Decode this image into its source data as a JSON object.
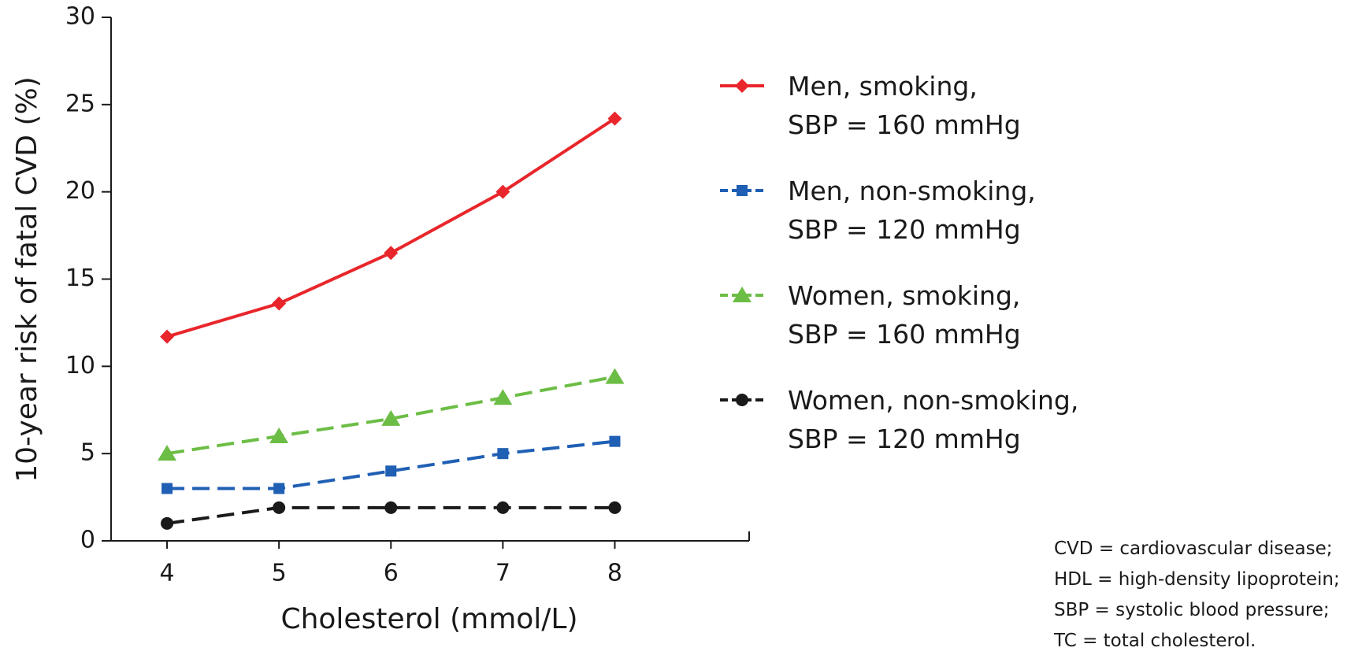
{
  "chart_data": {
    "type": "line",
    "x_label": "Cholesterol (mmol/L)",
    "y_label": "10-year risk of fatal CVD (%)",
    "x": [
      4,
      5,
      6,
      7,
      8
    ],
    "xlim": [
      3.5,
      9.2
    ],
    "xticks": [
      4,
      5,
      6,
      7,
      8
    ],
    "ylim": [
      0,
      30
    ],
    "yticks": [
      0,
      5,
      10,
      15,
      20,
      25,
      30
    ],
    "series": [
      {
        "name": "Men, smoking,\nSBP = 160 mmHg",
        "color": "#e8262b",
        "marker": "diamond",
        "dashed": false,
        "values": [
          11.7,
          13.6,
          16.5,
          20,
          24.2
        ]
      },
      {
        "name": "Men, non-smoking,\nSBP = 120 mmHg",
        "color": "#1f5fb4",
        "marker": "square",
        "dashed": true,
        "values": [
          3.0,
          3.0,
          4.0,
          5.0,
          5.7
        ]
      },
      {
        "name": "Women, smoking,\nSBP = 160 mmHg",
        "color": "#6cbd45",
        "marker": "triangle",
        "dashed": true,
        "values": [
          5.0,
          6.0,
          7.0,
          8.2,
          9.4
        ]
      },
      {
        "name": "Women, non-smoking,\nSBP = 120 mmHg",
        "color": "#1a1a1a",
        "marker": "circle",
        "dashed": true,
        "values": [
          1.0,
          1.9,
          1.9,
          1.9,
          1.9
        ]
      }
    ],
    "notes": [
      "CVD = cardiovascular disease;",
      "HDL = high-density lipoprotein;",
      "SBP = systolic blood pressure;",
      "TC = total cholesterol."
    ]
  }
}
